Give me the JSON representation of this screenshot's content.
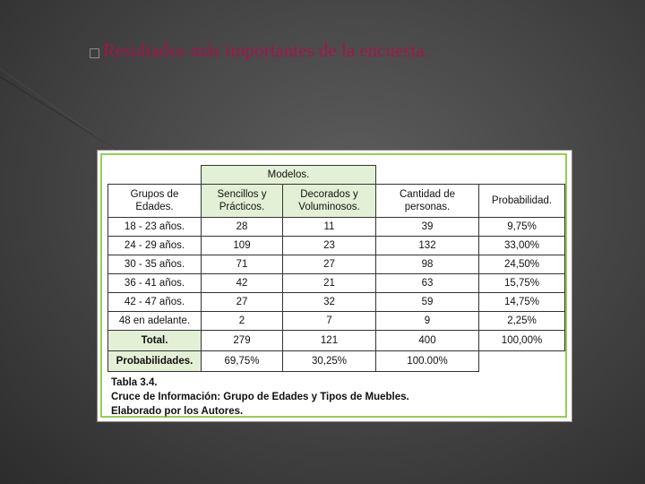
{
  "slide": {
    "title": "Resultados más importantes de la encuesta."
  },
  "table": {
    "group_header": "Modelos.",
    "headers": [
      "Grupos de\nEdades.",
      "Sencillos y\nPrácticos.",
      "Decorados y\nVoluminosos.",
      "Cantidad de\npersonas.",
      "Probabilidad."
    ],
    "rows": [
      [
        "18 - 23 años.",
        "28",
        "11",
        "39",
        "9,75%"
      ],
      [
        "24 - 29 años.",
        "109",
        "23",
        "132",
        "33,00%"
      ],
      [
        "30 - 35 años.",
        "71",
        "27",
        "98",
        "24,50%"
      ],
      [
        "36 - 41 años.",
        "42",
        "21",
        "63",
        "15,75%"
      ],
      [
        "42 - 47 años.",
        "27",
        "32",
        "59",
        "14,75%"
      ],
      [
        "48 en adelante.",
        "2",
        "7",
        "9",
        "2,25%"
      ]
    ],
    "total_row": [
      "Total.",
      "279",
      "121",
      "400",
      "100,00%"
    ],
    "prob_row": [
      "Probabilidades.",
      "69,75%",
      "30,25%",
      "100.00%"
    ]
  },
  "caption": {
    "line1": "Tabla 3.4.",
    "line2": "Cruce de Información: Grupo de Edades y Tipos de Muebles.",
    "line3": "Elaborado por los Autores."
  },
  "colors": {
    "title": "#a0164a",
    "frame_border": "#92d050",
    "header_fill": "#e4f0d6"
  }
}
